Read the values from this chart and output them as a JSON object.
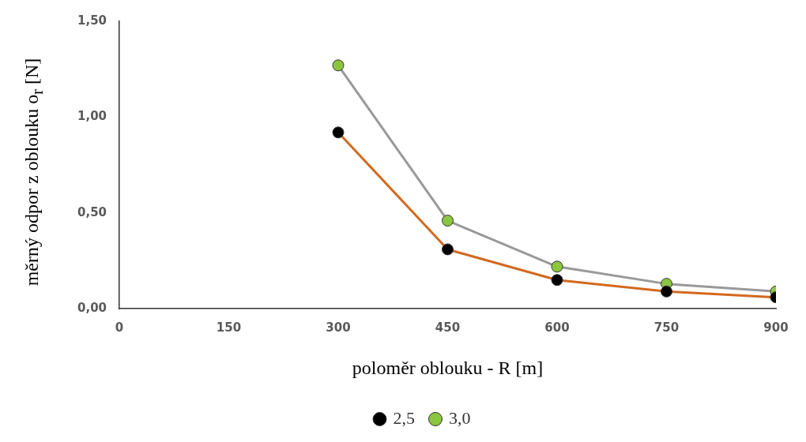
{
  "chart_data": {
    "type": "line",
    "xlabel": "poloměr oblouku - R [m]",
    "ylabel": "měrný odpor z oblouku o$_{r}$ [N]",
    "xlim": [
      0,
      900
    ],
    "xticks": [
      0,
      150,
      300,
      450,
      600,
      750,
      900
    ],
    "ylim": [
      0,
      1.5
    ],
    "yticks": [
      {
        "value": 0,
        "label": "0,00"
      },
      {
        "value": 0.5,
        "label": "0,50"
      },
      {
        "value": 1,
        "label": "1,00"
      },
      {
        "value": 1.5,
        "label": "1,50"
      }
    ],
    "x": [
      300,
      450,
      600,
      750,
      900
    ],
    "series": [
      {
        "name": "2,5",
        "color": "#d2691e",
        "colors": [
          "#000000",
          "#000000",
          "#000000",
          "#000000",
          "#000000"
        ],
        "values": [
          0.92,
          0.31,
          0.15,
          0.09,
          0.06
        ]
      },
      {
        "name": "3,0",
        "color": "#999999",
        "colors": [
          "#8cc63f",
          "#8cc63f",
          "#8cc63f",
          "#8cc63f",
          "#8cc63f"
        ],
        "values": [
          1.27,
          0.46,
          0.22,
          0.13,
          0.09
        ]
      }
    ],
    "grid": false,
    "legend": "bottom",
    "marker": "circle",
    "line_style": "solid"
  }
}
